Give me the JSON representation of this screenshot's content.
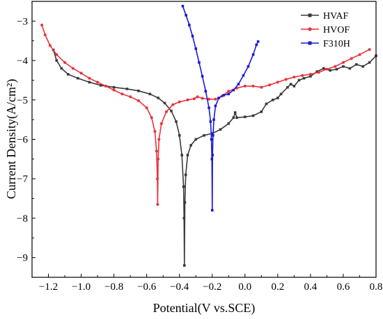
{
  "chart_data": {
    "type": "line",
    "xlabel": "Potential(V vs.SCE)",
    "ylabel": "Current Density(A/cm²)",
    "xlim": [
      -1.3,
      0.8
    ],
    "ylim": [
      -9.5,
      -2.5
    ],
    "x_ticks": [
      -1.2,
      -1.0,
      -0.8,
      -0.6,
      -0.4,
      -0.2,
      0.0,
      0.2,
      0.4,
      0.6,
      0.8
    ],
    "x_tick_labels": [
      "−1.2",
      "−1.0",
      "−0.8",
      "−0.6",
      "−0.4",
      "−0.2",
      "0.0",
      "0.2",
      "0.4",
      "0.6",
      "0.8"
    ],
    "y_ticks": [
      -9,
      -8,
      -7,
      -6,
      -5,
      -4,
      -3
    ],
    "y_tick_labels": [
      "−9",
      "−8",
      "−7",
      "−6",
      "−5",
      "−4",
      "−3"
    ],
    "grid": false,
    "legend_position": "top-right",
    "series": [
      {
        "name": "HVAF",
        "color": "#3a3a3a",
        "marker": "square",
        "points": [
          [
            -1.17,
            -3.73
          ],
          [
            -1.15,
            -4.0
          ],
          [
            -1.12,
            -4.2
          ],
          [
            -1.08,
            -4.35
          ],
          [
            -1.02,
            -4.45
          ],
          [
            -0.95,
            -4.55
          ],
          [
            -0.88,
            -4.63
          ],
          [
            -0.8,
            -4.68
          ],
          [
            -0.72,
            -4.72
          ],
          [
            -0.65,
            -4.77
          ],
          [
            -0.58,
            -4.85
          ],
          [
            -0.53,
            -4.95
          ],
          [
            -0.49,
            -5.08
          ],
          [
            -0.45,
            -5.28
          ],
          [
            -0.42,
            -5.55
          ],
          [
            -0.4,
            -5.9
          ],
          [
            -0.385,
            -6.4
          ],
          [
            -0.375,
            -7.2
          ],
          [
            -0.372,
            -8.0
          ],
          [
            -0.37,
            -9.2
          ],
          [
            -0.367,
            -7.6
          ],
          [
            -0.362,
            -6.9
          ],
          [
            -0.35,
            -6.4
          ],
          [
            -0.33,
            -6.15
          ],
          [
            -0.3,
            -6.0
          ],
          [
            -0.25,
            -5.9
          ],
          [
            -0.2,
            -5.85
          ],
          [
            -0.15,
            -5.75
          ],
          [
            -0.1,
            -5.6
          ],
          [
            -0.07,
            -5.45
          ],
          [
            -0.06,
            -5.32
          ],
          [
            -0.05,
            -5.45
          ],
          [
            0.0,
            -5.43
          ],
          [
            0.05,
            -5.4
          ],
          [
            0.1,
            -5.3
          ],
          [
            0.13,
            -5.1
          ],
          [
            0.17,
            -5.0
          ],
          [
            0.2,
            -4.95
          ],
          [
            0.22,
            -4.85
          ],
          [
            0.26,
            -4.68
          ],
          [
            0.28,
            -4.6
          ],
          [
            0.3,
            -4.65
          ],
          [
            0.33,
            -4.5
          ],
          [
            0.36,
            -4.45
          ],
          [
            0.4,
            -4.4
          ],
          [
            0.44,
            -4.28
          ],
          [
            0.48,
            -4.2
          ],
          [
            0.52,
            -4.25
          ],
          [
            0.56,
            -4.22
          ],
          [
            0.6,
            -4.15
          ],
          [
            0.64,
            -4.2
          ],
          [
            0.68,
            -4.1
          ],
          [
            0.72,
            -4.15
          ],
          [
            0.76,
            -4.05
          ],
          [
            0.8,
            -3.88
          ]
        ]
      },
      {
        "name": "HVOF",
        "color": "#e8323a",
        "marker": "circle",
        "points": [
          [
            -1.24,
            -3.1
          ],
          [
            -1.22,
            -3.35
          ],
          [
            -1.19,
            -3.62
          ],
          [
            -1.15,
            -3.85
          ],
          [
            -1.1,
            -4.05
          ],
          [
            -1.05,
            -4.2
          ],
          [
            -1.0,
            -4.32
          ],
          [
            -0.95,
            -4.45
          ],
          [
            -0.9,
            -4.55
          ],
          [
            -0.85,
            -4.65
          ],
          [
            -0.8,
            -4.75
          ],
          [
            -0.75,
            -4.85
          ],
          [
            -0.7,
            -4.92
          ],
          [
            -0.65,
            -5.02
          ],
          [
            -0.6,
            -5.2
          ],
          [
            -0.57,
            -5.45
          ],
          [
            -0.55,
            -5.8
          ],
          [
            -0.54,
            -6.3
          ],
          [
            -0.535,
            -7.0
          ],
          [
            -0.533,
            -7.65
          ],
          [
            -0.53,
            -6.5
          ],
          [
            -0.525,
            -6.0
          ],
          [
            -0.51,
            -5.6
          ],
          [
            -0.48,
            -5.3
          ],
          [
            -0.44,
            -5.12
          ],
          [
            -0.4,
            -5.05
          ],
          [
            -0.35,
            -5.0
          ],
          [
            -0.31,
            -4.97
          ],
          [
            -0.29,
            -4.92
          ],
          [
            -0.26,
            -4.96
          ],
          [
            -0.22,
            -4.98
          ],
          [
            -0.18,
            -4.98
          ],
          [
            -0.14,
            -4.9
          ],
          [
            -0.1,
            -4.78
          ],
          [
            -0.05,
            -4.7
          ],
          [
            0.0,
            -4.65
          ],
          [
            0.05,
            -4.65
          ],
          [
            0.1,
            -4.68
          ],
          [
            0.15,
            -4.62
          ],
          [
            0.2,
            -4.55
          ],
          [
            0.25,
            -4.48
          ],
          [
            0.3,
            -4.42
          ],
          [
            0.35,
            -4.38
          ],
          [
            0.4,
            -4.35
          ],
          [
            0.45,
            -4.3
          ],
          [
            0.5,
            -4.22
          ],
          [
            0.55,
            -4.15
          ],
          [
            0.6,
            -4.05
          ],
          [
            0.65,
            -3.95
          ],
          [
            0.7,
            -3.85
          ],
          [
            0.76,
            -3.72
          ]
        ]
      },
      {
        "name": "F310H",
        "color": "#1a1ad6",
        "marker": "square",
        "points": [
          [
            -0.38,
            -2.62
          ],
          [
            -0.36,
            -2.85
          ],
          [
            -0.34,
            -3.1
          ],
          [
            -0.32,
            -3.38
          ],
          [
            -0.3,
            -3.7
          ],
          [
            -0.28,
            -4.05
          ],
          [
            -0.26,
            -4.4
          ],
          [
            -0.24,
            -4.78
          ],
          [
            -0.22,
            -5.2
          ],
          [
            -0.21,
            -5.55
          ],
          [
            -0.205,
            -6.0
          ],
          [
            -0.202,
            -6.5
          ],
          [
            -0.2,
            -7.8
          ],
          [
            -0.198,
            -6.4
          ],
          [
            -0.195,
            -5.9
          ],
          [
            -0.19,
            -5.5
          ],
          [
            -0.18,
            -5.15
          ],
          [
            -0.16,
            -4.95
          ],
          [
            -0.13,
            -4.88
          ],
          [
            -0.1,
            -4.85
          ],
          [
            -0.07,
            -4.75
          ],
          [
            -0.04,
            -4.6
          ],
          [
            -0.01,
            -4.38
          ],
          [
            0.02,
            -4.15
          ],
          [
            0.05,
            -3.85
          ],
          [
            0.07,
            -3.6
          ],
          [
            0.08,
            -3.52
          ]
        ]
      }
    ]
  }
}
